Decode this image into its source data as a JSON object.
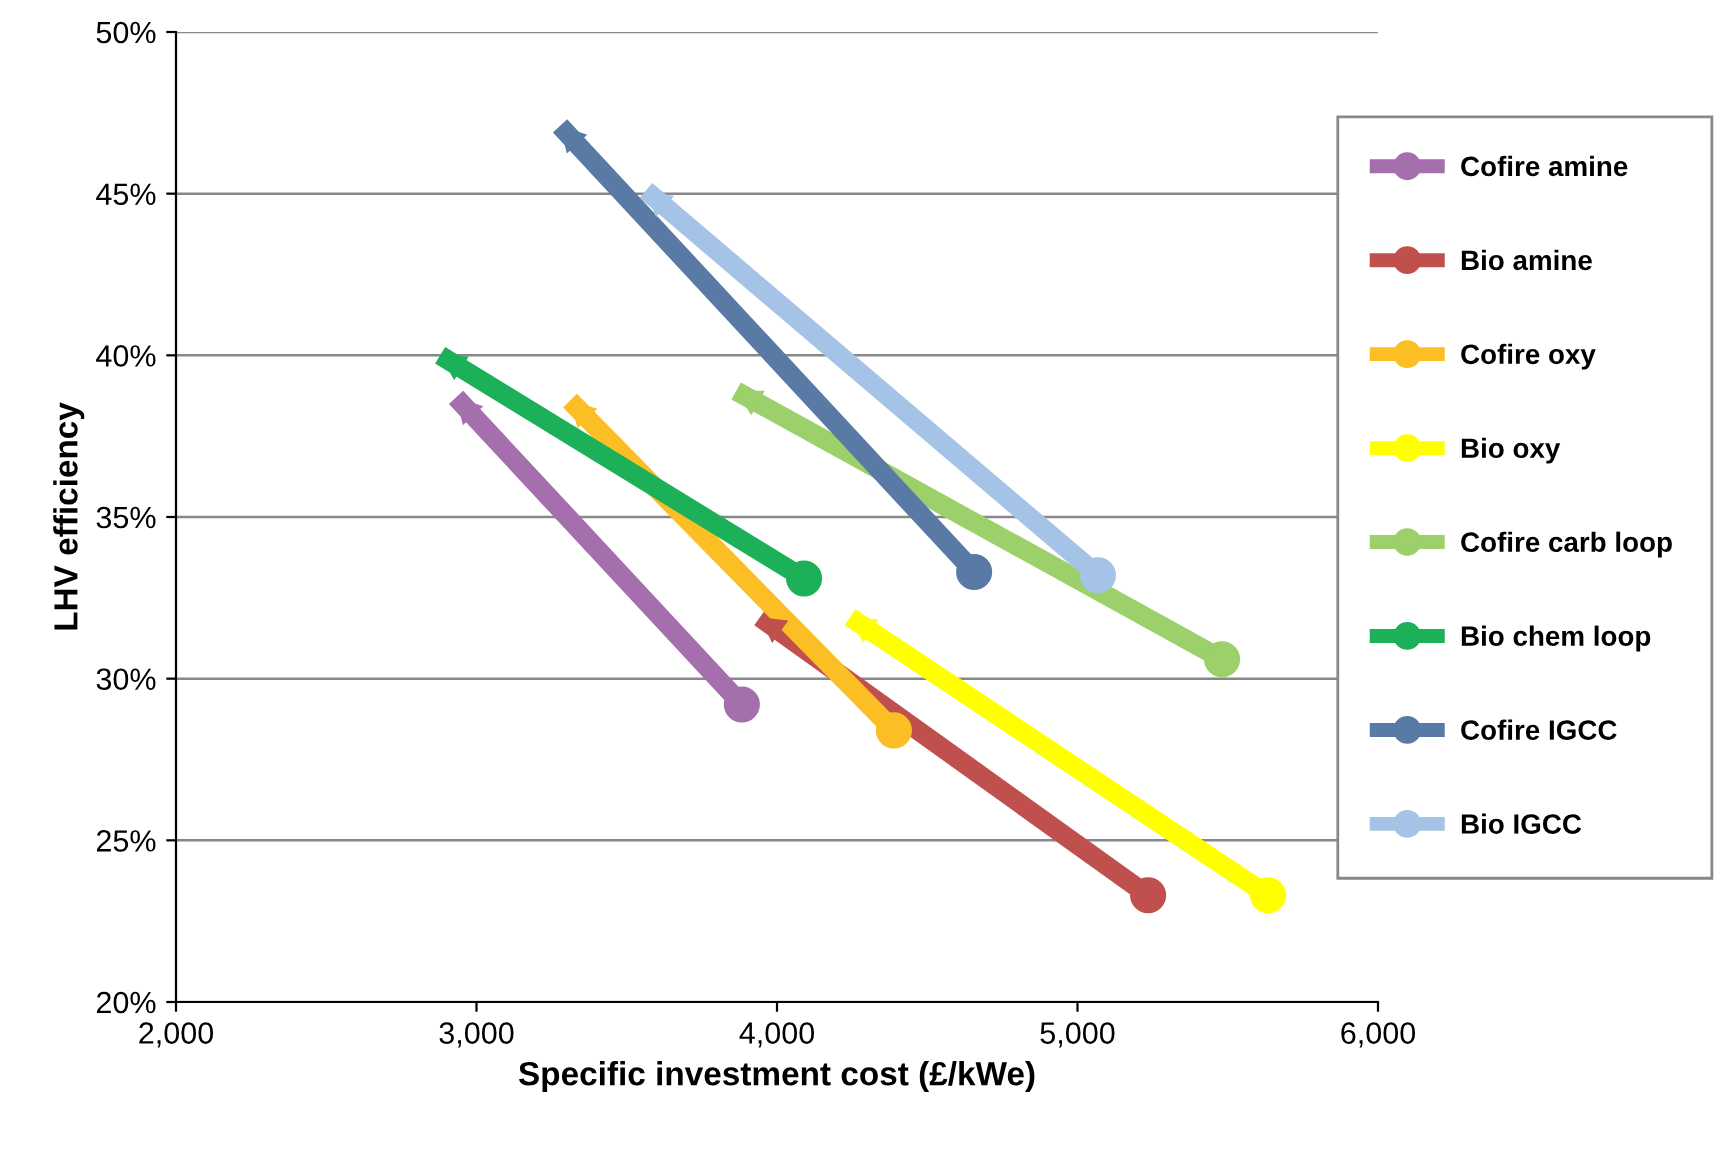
{
  "chart_data": {
    "type": "line",
    "xlabel": "Specific investment cost (£/kWe)",
    "ylabel": "LHV efficiency",
    "xlim": [
      2000,
      6000
    ],
    "xticks": [
      {
        "value": 2000,
        "label": "2,000"
      },
      {
        "value": 3000,
        "label": "3,000"
      },
      {
        "value": 4000,
        "label": "4,000"
      },
      {
        "value": 5000,
        "label": "5,000"
      },
      {
        "value": 6000,
        "label": "6,000"
      }
    ],
    "ylim": [
      20,
      50
    ],
    "yticks": [
      {
        "value": 20,
        "label": "20%"
      },
      {
        "value": 25,
        "label": "25%"
      },
      {
        "value": 30,
        "label": "30%"
      },
      {
        "value": 35,
        "label": "35%"
      },
      {
        "value": 40,
        "label": "40%"
      },
      {
        "value": 45,
        "label": "45%"
      },
      {
        "value": 50,
        "label": "50%"
      }
    ],
    "grid": "y",
    "legend": "right",
    "marker": "circle",
    "series": [
      {
        "name": "Cofire amine",
        "color": "#a56fae",
        "x": [
          3883,
          2932
        ],
        "values": [
          29.2,
          38.7
        ]
      },
      {
        "name": "Bio amine",
        "color": "#c0504d",
        "x": [
          5235,
          3943
        ],
        "values": [
          23.3,
          31.9
        ]
      },
      {
        "name": "Cofire oxy",
        "color": "#fbbf25",
        "x": [
          4389,
          3311
        ],
        "values": [
          28.4,
          38.6
        ]
      },
      {
        "name": "Bio oxy",
        "color": "#ffff00",
        "x": [
          5634,
          4243
        ],
        "values": [
          23.3,
          31.9
        ]
      },
      {
        "name": "Cofire carb loop",
        "color": "#9bd06a",
        "x": [
          5481,
          3864
        ],
        "values": [
          30.6,
          38.9
        ]
      },
      {
        "name": "Bio chem loop",
        "color": "#1cb058",
        "x": [
          4090,
          2879
        ],
        "values": [
          33.1,
          40.0
        ]
      },
      {
        "name": "Cofire IGCC",
        "color": "#5a7aa6",
        "x": [
          4656,
          3278
        ],
        "values": [
          33.3,
          47.1
        ]
      },
      {
        "name": "Bio IGCC",
        "color": "#a5c3e6",
        "x": [
          5068,
          3564
        ],
        "values": [
          33.2,
          45.1
        ]
      }
    ]
  }
}
